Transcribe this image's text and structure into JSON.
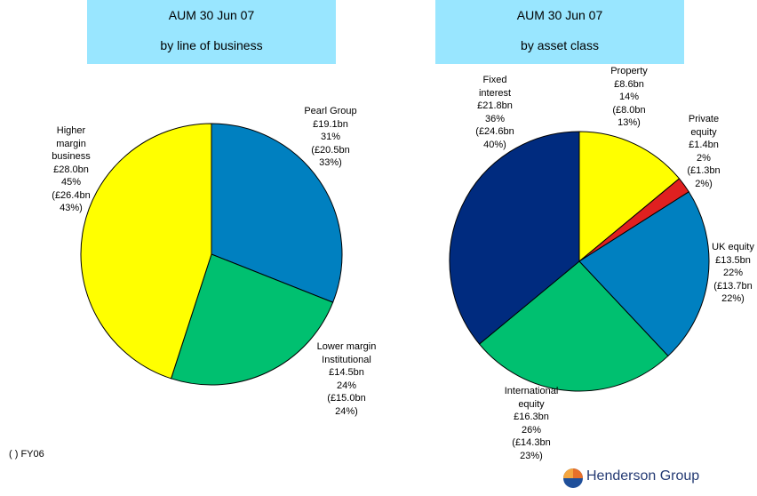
{
  "chart_data": [
    {
      "type": "pie",
      "title": "AUM 30 Jun 07",
      "subtitle": "by line of business",
      "categories": [
        "Pearl Group",
        "Lower margin Institutional",
        "Higher margin business"
      ],
      "values": [
        31,
        24,
        45
      ],
      "value_labels": [
        "31%",
        "24%",
        "45%"
      ],
      "amounts": [
        "£19.1bn",
        "£14.5bn",
        "£28.0bn"
      ],
      "prior_amounts": [
        "(£20.5bn",
        "(£15.0bn",
        "(£26.4bn"
      ],
      "prior_shares": [
        "33%)",
        "24%)",
        "43%)"
      ],
      "colors": [
        "#0080c0",
        "#00c070",
        "#ffff00"
      ]
    },
    {
      "type": "pie",
      "title": "AUM 30 Jun 07",
      "subtitle": "by asset class",
      "categories": [
        "Property",
        "Private equity",
        "UK equity",
        "International equity",
        "Fixed interest"
      ],
      "values": [
        14,
        2,
        22,
        26,
        36
      ],
      "value_labels": [
        "14%",
        "2%",
        "22%",
        "26%",
        "36%"
      ],
      "amounts": [
        "£8.6bn",
        "£1.4bn",
        "£13.5bn",
        "£16.3bn",
        "£21.8bn"
      ],
      "prior_amounts": [
        "(£8.0bn",
        "(£1.3bn",
        "(£13.7bn",
        "(£14.3bn",
        "(£24.6bn"
      ],
      "prior_shares": [
        "13%)",
        "2%)",
        "22%)",
        "23%)",
        "40%)"
      ],
      "colors": [
        "#ffff00",
        "#e02020",
        "#0080c0",
        "#00c070",
        "#002b7f"
      ]
    }
  ],
  "footnote": "( ) FY06",
  "brand": "Henderson Group"
}
